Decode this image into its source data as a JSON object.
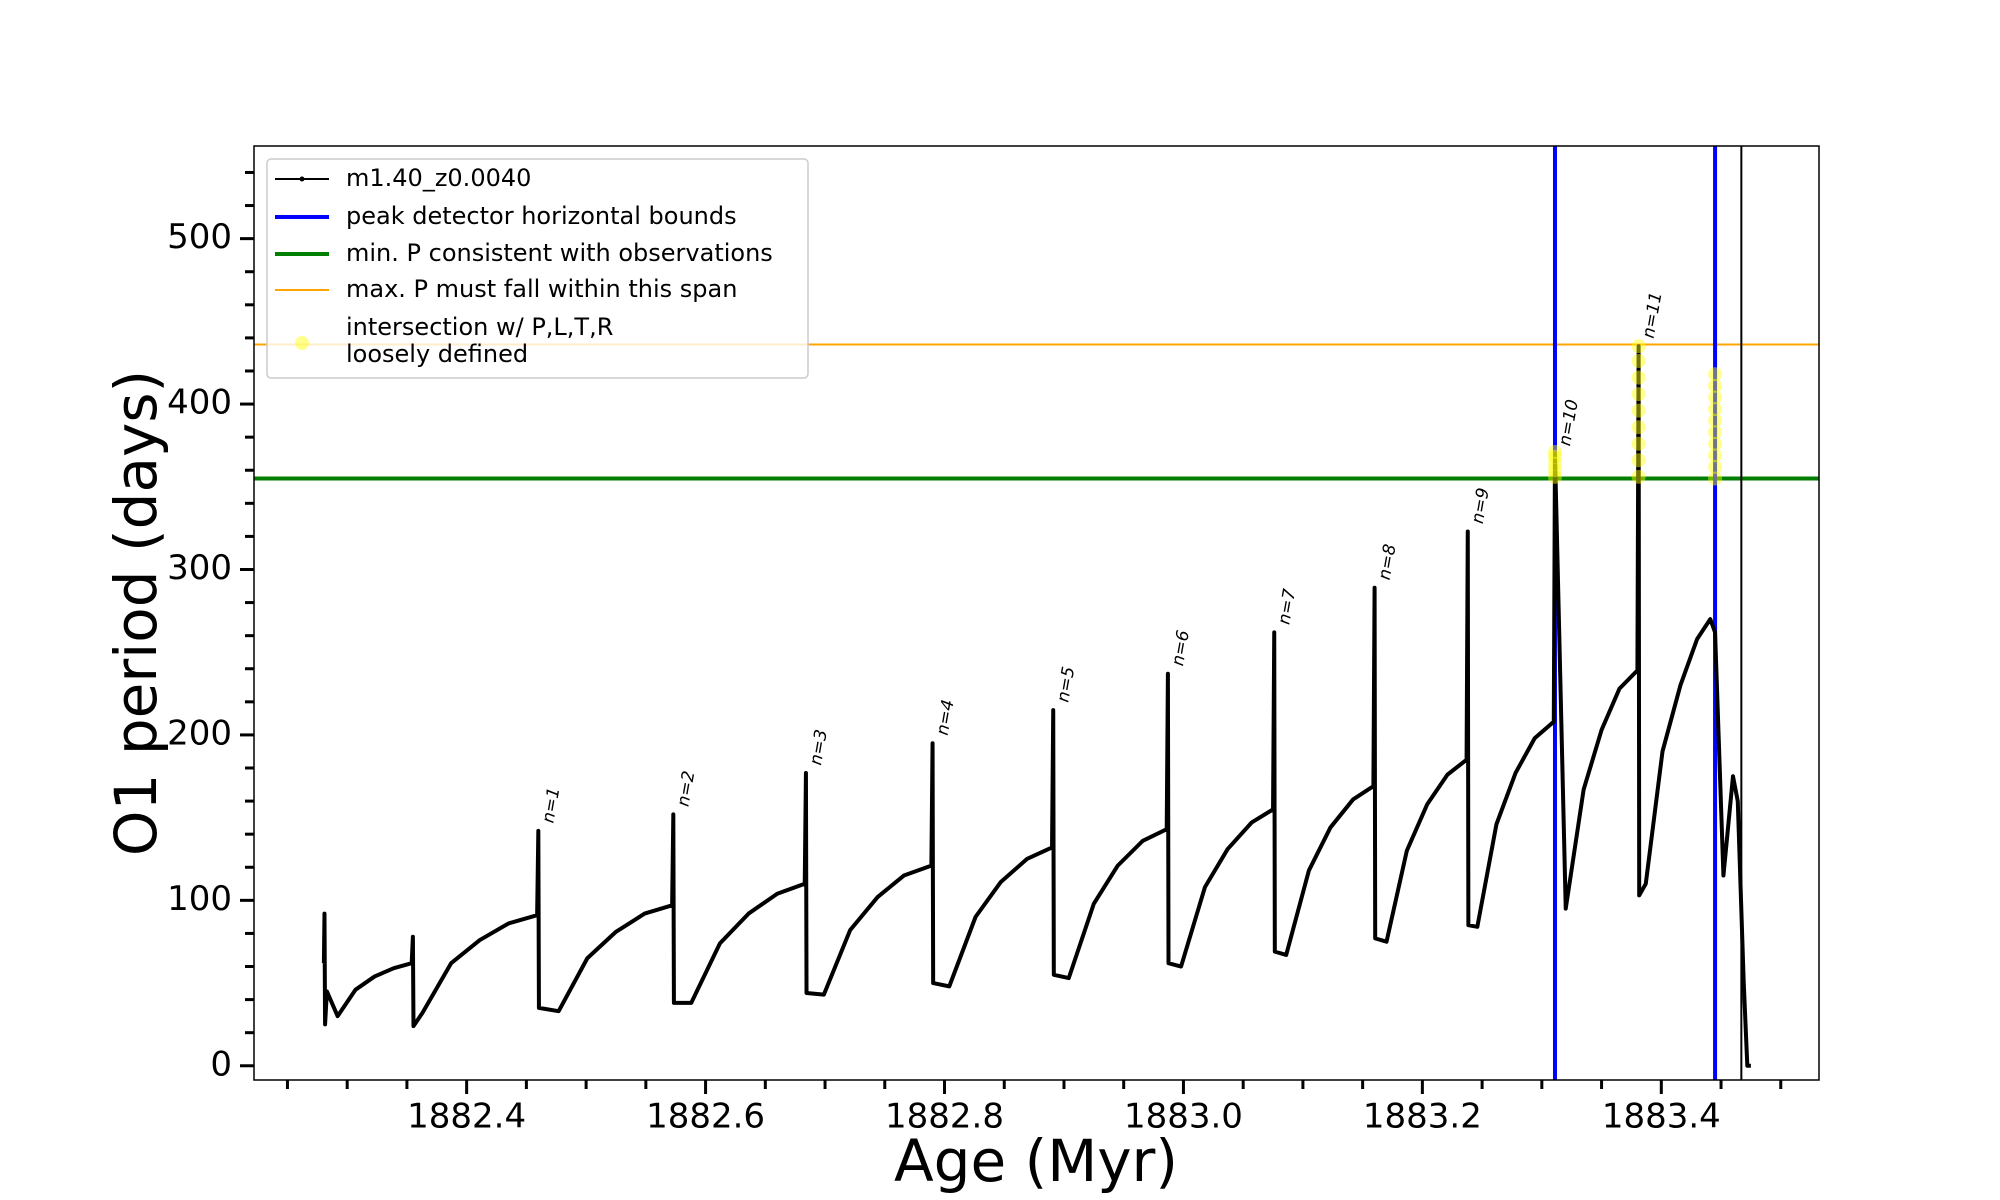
{
  "chart_data": {
    "type": "line",
    "xlabel": "Age (Myr)",
    "ylabel": "O1 period (days)",
    "xlim": [
      1882.222,
      1883.532
    ],
    "ylim": [
      -8.6,
      556
    ],
    "xticks": [
      1882.4,
      1882.6,
      1882.8,
      {
        "value": 1883,
        "label": "1883.0"
      },
      1883.2,
      1883.4
    ],
    "yticks": [
      0,
      100,
      200,
      300,
      400,
      500
    ],
    "xminorticks": [
      1882.25,
      1882.3,
      1882.35,
      1882.45,
      1882.5,
      1882.55,
      1882.65,
      1882.7,
      1882.75,
      1882.85,
      1882.9,
      1882.95,
      1883.05,
      1883.1,
      1883.15,
      1883.25,
      1883.3,
      1883.35,
      1883.45,
      1883.5
    ],
    "yminorticks": [
      20,
      40,
      60,
      80,
      120,
      140,
      160,
      180,
      220,
      240,
      260,
      280,
      320,
      340,
      360,
      380,
      420,
      440,
      460,
      480,
      520,
      540
    ],
    "legend": "upper left",
    "series": [
      {
        "name": "m1.40_z0.0040",
        "color": "#000000",
        "kind": "line",
        "x": [
          1882.2805,
          1882.281,
          1882.2815,
          1882.283,
          1882.292,
          1882.307,
          1882.323,
          1882.339,
          1882.354,
          1882.355,
          1882.3555,
          1882.363,
          1882.387,
          1882.411,
          1882.435,
          1882.459,
          1882.46,
          1882.4605,
          1882.477,
          1882.501,
          1882.525,
          1882.549,
          1882.572,
          1882.573,
          1882.5735,
          1882.588,
          1882.612,
          1882.636,
          1882.66,
          1882.683,
          1882.684,
          1882.6845,
          1882.699,
          1882.721,
          1882.744,
          1882.766,
          1882.789,
          1882.79,
          1882.7905,
          1882.804,
          1882.826,
          1882.847,
          1882.869,
          1882.89,
          1882.891,
          1882.8915,
          1882.904,
          1882.925,
          1882.945,
          1882.966,
          1882.986,
          1882.987,
          1882.9875,
          1882.998,
          1883.018,
          1883.037,
          1883.057,
          1883.075,
          1883.076,
          1883.0765,
          1883.086,
          1883.105,
          1883.123,
          1883.142,
          1883.159,
          1883.16,
          1883.1605,
          1883.17,
          1883.187,
          1883.204,
          1883.221,
          1883.237,
          1883.238,
          1883.2385,
          1883.246,
          1883.262,
          1883.278,
          1883.294,
          1883.31,
          1883.311,
          1883.32,
          1883.335,
          1883.35,
          1883.365,
          1883.38,
          1883.381,
          1883.3815,
          1883.387,
          1883.401,
          1883.416,
          1883.43,
          1883.441,
          1883.445,
          1883.452,
          1883.46,
          1883.464,
          1883.469,
          1883.472,
          1883.475
        ],
        "values": [
          62,
          92,
          25,
          45,
          30,
          46,
          54,
          59,
          62,
          78,
          24,
          32,
          62,
          76,
          86,
          91,
          142,
          35,
          33,
          65,
          81,
          92,
          97,
          152,
          38,
          38,
          74,
          92,
          104,
          110,
          177,
          44,
          43,
          82,
          102,
          115,
          121,
          195,
          50,
          48,
          90,
          111,
          125,
          132,
          215,
          55,
          53,
          98,
          121,
          136,
          143,
          237,
          62,
          60,
          108,
          131,
          147,
          155,
          262,
          69,
          67,
          118,
          144,
          161,
          169,
          289,
          77,
          75,
          130,
          158,
          176,
          185,
          323,
          85,
          84,
          146,
          177,
          198,
          208,
          370,
          95,
          167,
          203,
          228,
          239,
          435,
          103,
          110,
          190,
          230,
          258,
          270,
          262,
          115,
          175,
          160,
          50,
          0,
          0
        ]
      },
      {
        "name": [
          "intersection w/ P,L,T,R",
          "loosely defined"
        ],
        "color": "#ffff00",
        "kind": "scatter",
        "x": [
          1883.311,
          1883.311,
          1883.311,
          1883.311,
          1883.311,
          1883.381,
          1883.381,
          1883.381,
          1883.381,
          1883.381,
          1883.381,
          1883.381,
          1883.381,
          1883.381,
          1883.445,
          1883.445,
          1883.445,
          1883.445,
          1883.445,
          1883.445,
          1883.445,
          1883.445,
          1883.445,
          1883.445
        ],
        "values": [
          356,
          360,
          364,
          368,
          371,
          356,
          366,
          376,
          386,
          396,
          406,
          416,
          426,
          435,
          355,
          362,
          369,
          376,
          383,
          390,
          397,
          404,
          411,
          418
        ]
      }
    ],
    "vlines": [
      {
        "name": "peak detector horizontal bounds",
        "color": "#0000ff",
        "x": 1883.311
      },
      {
        "color": "#0000ff",
        "x": 1883.445
      },
      {
        "color": "#000000",
        "x": 1883.467
      }
    ],
    "hlines": [
      {
        "name": "min. P consistent with observations",
        "color": "#007f00",
        "y": 355
      },
      {
        "name": "max. P must fall within this span",
        "color": "#ffa500",
        "y": 436
      }
    ],
    "annotations": [
      {
        "text": "n=1",
        "x": 1882.46,
        "y": 142
      },
      {
        "text": "n=2",
        "x": 1882.573,
        "y": 152
      },
      {
        "text": "n=3",
        "x": 1882.684,
        "y": 177
      },
      {
        "text": "n=4",
        "x": 1882.79,
        "y": 195
      },
      {
        "text": "n=5",
        "x": 1882.891,
        "y": 215
      },
      {
        "text": "n=6",
        "x": 1882.987,
        "y": 237
      },
      {
        "text": "n=7",
        "x": 1883.076,
        "y": 262
      },
      {
        "text": "n=8",
        "x": 1883.16,
        "y": 289
      },
      {
        "text": "n=9",
        "x": 1883.238,
        "y": 323
      },
      {
        "text": "n=10",
        "x": 1883.311,
        "y": 370
      },
      {
        "text": "n=11",
        "x": 1883.381,
        "y": 435
      }
    ]
  }
}
